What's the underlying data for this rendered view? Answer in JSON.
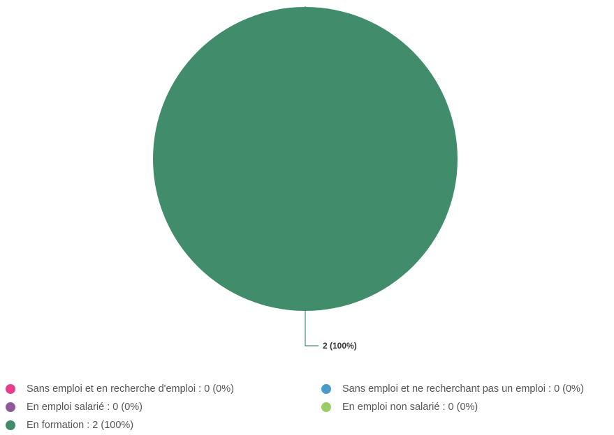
{
  "chart_data": {
    "type": "pie",
    "title": "",
    "categories": [
      "Sans emploi et en recherche d'emploi",
      "Sans emploi et ne recherchant pas un emploi",
      "En emploi salarié",
      "En emploi non salarié",
      "En formation"
    ],
    "values": [
      0,
      0,
      0,
      0,
      2
    ],
    "percentages": [
      0,
      0,
      0,
      0,
      100
    ],
    "colors": [
      "#e83e8c",
      "#4a9bc8",
      "#8e5a9a",
      "#9ccc65",
      "#408c6b"
    ],
    "data_labels": [
      "2 (100%)"
    ],
    "legend_position": "bottom",
    "legend": [
      {
        "label": "Sans emploi et en recherche d'emploi : 0 (0%)",
        "color": "#e83e8c"
      },
      {
        "label": "Sans emploi et ne recherchant pas un emploi : 0 (0%)",
        "color": "#4a9bc8"
      },
      {
        "label": "En emploi salarié : 0 (0%)",
        "color": "#8e5a9a"
      },
      {
        "label": "En emploi non salarié : 0 (0%)",
        "color": "#9ccc65"
      },
      {
        "label": "En formation : 2 (100%)",
        "color": "#408c6b"
      }
    ]
  }
}
